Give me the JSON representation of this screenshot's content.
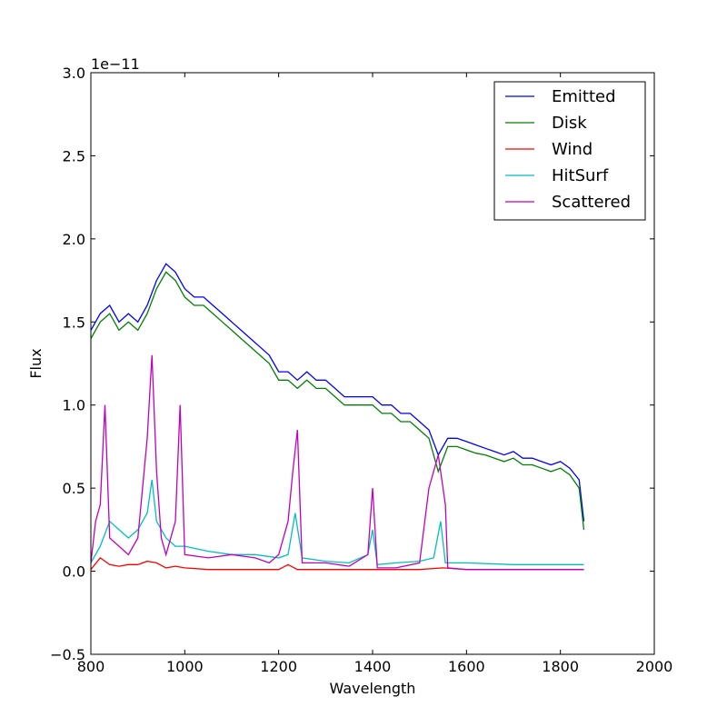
{
  "chart_data": {
    "type": "line",
    "title": "",
    "xlabel": "Wavelength",
    "ylabel": "Flux",
    "offset_text": "1e−11",
    "xlim": [
      800,
      2000
    ],
    "ylim": [
      -0.5,
      3.0
    ],
    "xticks": [
      800,
      1000,
      1200,
      1400,
      1600,
      1800,
      2000
    ],
    "xtick_labels": [
      "800",
      "1000",
      "1200",
      "1400",
      "1600",
      "1800",
      "2000"
    ],
    "yticks": [
      -0.5,
      0.0,
      0.5,
      1.0,
      1.5,
      2.0,
      2.5,
      3.0
    ],
    "ytick_labels": [
      "−0.5",
      "0.0",
      "0.5",
      "1.0",
      "1.5",
      "2.0",
      "2.5",
      "3.0"
    ],
    "grid": false,
    "legend_position": "top-right",
    "series": [
      {
        "name": "Emitted",
        "color": "#0000ff",
        "x": [
          800,
          820,
          840,
          860,
          880,
          900,
          920,
          940,
          960,
          980,
          1000,
          1020,
          1040,
          1060,
          1080,
          1100,
          1120,
          1140,
          1160,
          1180,
          1200,
          1220,
          1240,
          1260,
          1280,
          1300,
          1320,
          1340,
          1360,
          1380,
          1400,
          1420,
          1440,
          1460,
          1480,
          1500,
          1520,
          1540,
          1560,
          1580,
          1600,
          1620,
          1640,
          1660,
          1680,
          1700,
          1720,
          1740,
          1760,
          1780,
          1800,
          1820,
          1840,
          1850
        ],
        "values": [
          1.45,
          1.55,
          1.6,
          1.5,
          1.55,
          1.5,
          1.6,
          1.75,
          1.85,
          1.8,
          1.7,
          1.65,
          1.65,
          1.6,
          1.55,
          1.5,
          1.45,
          1.4,
          1.35,
          1.3,
          1.2,
          1.2,
          1.15,
          1.2,
          1.15,
          1.15,
          1.1,
          1.05,
          1.05,
          1.05,
          1.05,
          1.0,
          1.0,
          0.95,
          0.95,
          0.9,
          0.85,
          0.7,
          0.8,
          0.8,
          0.78,
          0.76,
          0.74,
          0.72,
          0.7,
          0.72,
          0.68,
          0.68,
          0.66,
          0.64,
          0.66,
          0.62,
          0.55,
          0.3
        ]
      },
      {
        "name": "Disk",
        "color": "#008000",
        "x": [
          800,
          820,
          840,
          860,
          880,
          900,
          920,
          940,
          960,
          980,
          1000,
          1020,
          1040,
          1060,
          1080,
          1100,
          1120,
          1140,
          1160,
          1180,
          1200,
          1220,
          1240,
          1260,
          1280,
          1300,
          1320,
          1340,
          1360,
          1380,
          1400,
          1420,
          1440,
          1460,
          1480,
          1500,
          1520,
          1540,
          1560,
          1580,
          1600,
          1620,
          1640,
          1660,
          1680,
          1700,
          1720,
          1740,
          1760,
          1780,
          1800,
          1820,
          1840,
          1850
        ],
        "values": [
          1.4,
          1.5,
          1.55,
          1.45,
          1.5,
          1.45,
          1.55,
          1.7,
          1.8,
          1.75,
          1.65,
          1.6,
          1.6,
          1.55,
          1.5,
          1.45,
          1.4,
          1.35,
          1.3,
          1.25,
          1.15,
          1.15,
          1.1,
          1.15,
          1.1,
          1.1,
          1.05,
          1.0,
          1.0,
          1.0,
          1.0,
          0.95,
          0.95,
          0.9,
          0.9,
          0.85,
          0.8,
          0.6,
          0.75,
          0.75,
          0.73,
          0.71,
          0.7,
          0.68,
          0.66,
          0.68,
          0.64,
          0.64,
          0.62,
          0.6,
          0.62,
          0.58,
          0.5,
          0.25
        ]
      },
      {
        "name": "Wind",
        "color": "#ff0000",
        "x": [
          800,
          820,
          840,
          860,
          880,
          900,
          920,
          940,
          960,
          980,
          1000,
          1050,
          1100,
          1150,
          1200,
          1220,
          1240,
          1260,
          1300,
          1400,
          1500,
          1550,
          1600,
          1700,
          1800,
          1850
        ],
        "values": [
          0.01,
          0.08,
          0.04,
          0.03,
          0.04,
          0.04,
          0.06,
          0.05,
          0.02,
          0.03,
          0.02,
          0.01,
          0.01,
          0.01,
          0.01,
          0.04,
          0.01,
          0.01,
          0.01,
          0.01,
          0.01,
          0.02,
          0.01,
          0.01,
          0.01,
          0.01
        ]
      },
      {
        "name": "HitSurf",
        "color": "#00bfbf",
        "x": [
          800,
          820,
          840,
          860,
          880,
          900,
          920,
          930,
          940,
          960,
          980,
          1000,
          1050,
          1100,
          1150,
          1200,
          1220,
          1235,
          1250,
          1300,
          1350,
          1390,
          1400,
          1410,
          1450,
          1500,
          1530,
          1545,
          1555,
          1600,
          1700,
          1800,
          1850
        ],
        "values": [
          0.05,
          0.15,
          0.3,
          0.25,
          0.2,
          0.25,
          0.35,
          0.55,
          0.3,
          0.2,
          0.15,
          0.15,
          0.12,
          0.1,
          0.1,
          0.08,
          0.1,
          0.35,
          0.08,
          0.06,
          0.05,
          0.1,
          0.25,
          0.04,
          0.05,
          0.06,
          0.08,
          0.3,
          0.05,
          0.05,
          0.04,
          0.04,
          0.04
        ]
      },
      {
        "name": "Scattered",
        "color": "#bf00bf",
        "x": [
          800,
          810,
          820,
          830,
          840,
          860,
          880,
          900,
          920,
          930,
          940,
          950,
          960,
          980,
          990,
          1000,
          1050,
          1100,
          1150,
          1180,
          1200,
          1220,
          1230,
          1240,
          1250,
          1300,
          1350,
          1390,
          1400,
          1410,
          1450,
          1500,
          1520,
          1540,
          1555,
          1560,
          1600,
          1700,
          1800,
          1850
        ],
        "values": [
          0.05,
          0.3,
          0.4,
          1.0,
          0.2,
          0.15,
          0.1,
          0.2,
          0.8,
          1.3,
          0.6,
          0.2,
          0.1,
          0.3,
          1.0,
          0.1,
          0.08,
          0.1,
          0.08,
          0.05,
          0.1,
          0.3,
          0.6,
          0.85,
          0.05,
          0.05,
          0.03,
          0.1,
          0.5,
          0.02,
          0.02,
          0.05,
          0.5,
          0.7,
          0.4,
          0.02,
          0.01,
          0.01,
          0.01,
          0.01
        ]
      }
    ]
  }
}
